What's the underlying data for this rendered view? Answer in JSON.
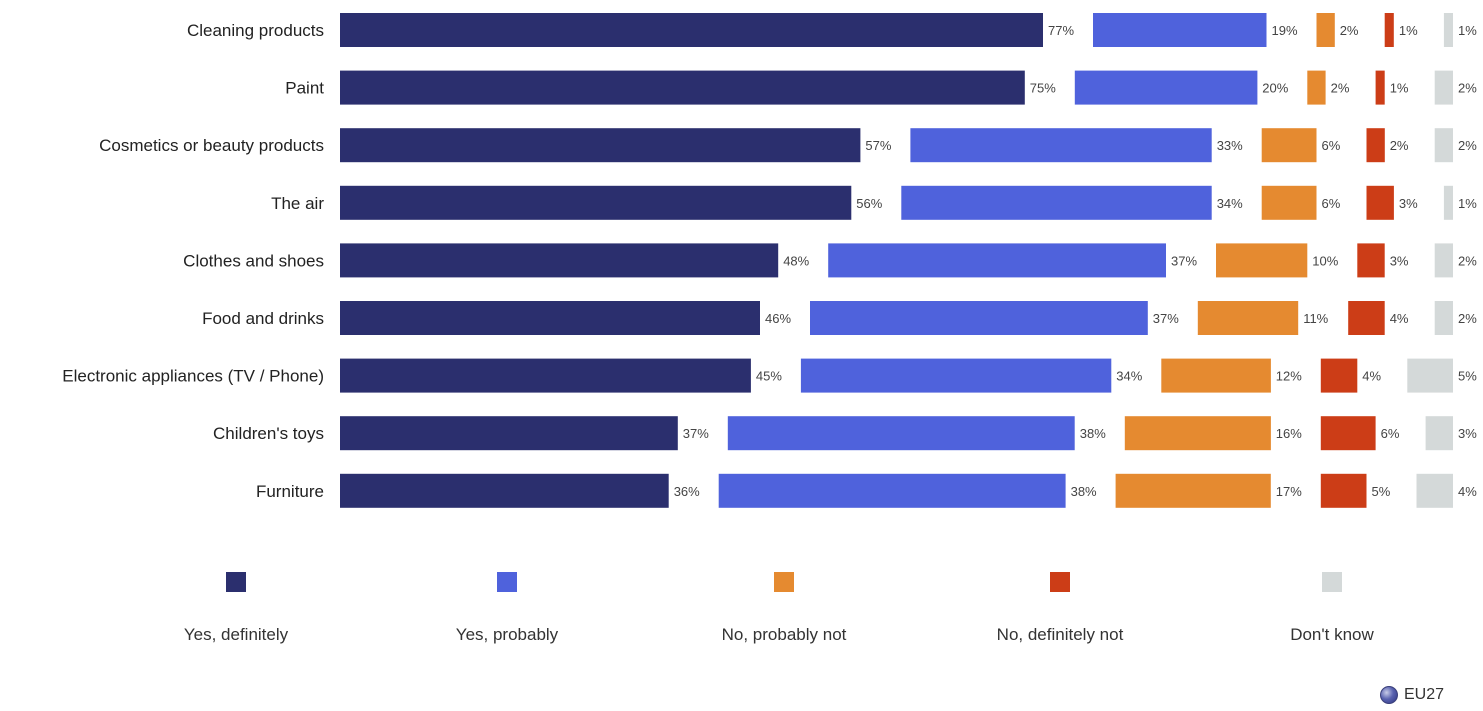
{
  "chart_data": {
    "type": "bar",
    "orientation": "horizontal-stacked",
    "categories": [
      "Cleaning products",
      "Paint",
      "Cosmetics or beauty products",
      "The air",
      "Clothes and shoes",
      "Food and drinks",
      "Electronic appliances (TV / Phone)",
      "Children's toys",
      "Furniture"
    ],
    "series": [
      {
        "name": "Yes, definitely",
        "color": "#2b2f6e",
        "values": [
          77,
          75,
          57,
          56,
          48,
          46,
          45,
          37,
          36
        ]
      },
      {
        "name": "Yes, probably",
        "color": "#4f62dc",
        "values": [
          19,
          20,
          33,
          34,
          37,
          37,
          34,
          38,
          38
        ]
      },
      {
        "name": "No, probably not",
        "color": "#e58a30",
        "values": [
          2,
          2,
          6,
          6,
          10,
          11,
          12,
          16,
          17
        ]
      },
      {
        "name": "No, definitely not",
        "color": "#cc3d17",
        "values": [
          1,
          1,
          2,
          3,
          3,
          4,
          4,
          6,
          5
        ]
      },
      {
        "name": "Don't know",
        "color": "#d4d9d9",
        "values": [
          1,
          2,
          2,
          1,
          2,
          2,
          5,
          3,
          4
        ]
      }
    ],
    "value_suffix": "%",
    "legend_position": "bottom",
    "grid": false
  },
  "badge": {
    "label": "EU27",
    "icon": "globe-icon"
  }
}
